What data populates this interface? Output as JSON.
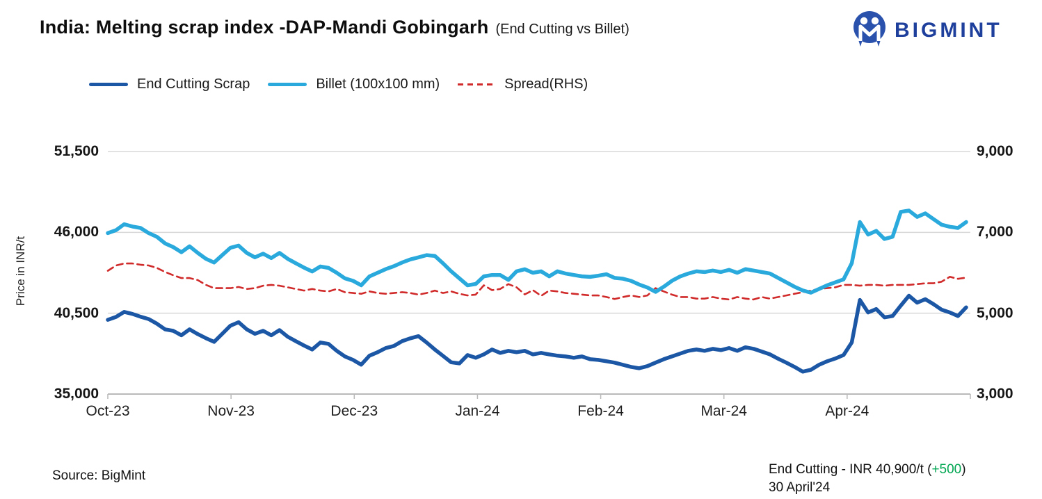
{
  "header": {
    "title": "India: Melting scrap index -DAP-Mandi Gobingarh",
    "subtitle": "(End Cutting vs Billet)",
    "brand": "BIGMINT"
  },
  "legend": [
    {
      "label": "End Cutting Scrap",
      "color": "#1b57a5",
      "dash": false
    },
    {
      "label": "Billet (100x100 mm)",
      "color": "#29a9dc",
      "dash": false
    },
    {
      "label": "Spread(RHS)",
      "color": "#d02a2a",
      "dash": true
    }
  ],
  "chart_data": {
    "type": "line",
    "title": "India: Melting scrap index -DAP-Mandi Gobingarh (End Cutting vs Billet)",
    "legend_position": "top",
    "grid": "horizontal",
    "x_categories": [
      "Oct-23",
      "Nov-23",
      "Dec-23",
      "Jan-24",
      "Feb-24",
      "Mar-24",
      "Apr-24"
    ],
    "points_per_month": 15,
    "y_left": {
      "title": "Price in INR/t",
      "min": 35000,
      "max": 51500,
      "ticks": [
        {
          "value": 51500,
          "label": "51,500"
        },
        {
          "value": 46000,
          "label": "46,000"
        },
        {
          "value": 40500,
          "label": "40,500"
        },
        {
          "value": 35000,
          "label": "35,000"
        }
      ]
    },
    "y_right": {
      "min": 3000,
      "max": 9000,
      "ticks": [
        {
          "value": 9000,
          "label": "9,000"
        },
        {
          "value": 7000,
          "label": "7,000"
        },
        {
          "value": 5000,
          "label": "5,000"
        },
        {
          "value": 3000,
          "label": "3,000"
        }
      ]
    },
    "series": [
      {
        "name": "Spread(RHS)",
        "axis": "right",
        "color": "#d02a2a",
        "dash": true,
        "values": [
          6050,
          6180,
          6230,
          6230,
          6200,
          6180,
          6120,
          6020,
          5940,
          5870,
          5870,
          5820,
          5700,
          5620,
          5620,
          5620,
          5650,
          5600,
          5620,
          5680,
          5700,
          5680,
          5640,
          5600,
          5560,
          5600,
          5560,
          5540,
          5600,
          5520,
          5500,
          5480,
          5540,
          5500,
          5480,
          5500,
          5520,
          5500,
          5460,
          5500,
          5560,
          5500,
          5540,
          5480,
          5440,
          5460,
          5690,
          5570,
          5600,
          5720,
          5640,
          5465,
          5570,
          5430,
          5560,
          5540,
          5500,
          5480,
          5460,
          5440,
          5440,
          5400,
          5350,
          5400,
          5440,
          5400,
          5440,
          5620,
          5540,
          5460,
          5400,
          5400,
          5360,
          5360,
          5400,
          5360,
          5340,
          5400,
          5360,
          5340,
          5400,
          5360,
          5400,
          5440,
          5480,
          5520,
          5560,
          5600,
          5620,
          5640,
          5700,
          5700,
          5680,
          5700,
          5700,
          5680,
          5700,
          5700,
          5700,
          5720,
          5740,
          5740,
          5780,
          5900,
          5850,
          5880
        ]
      },
      {
        "name": "Billet (100x100 mm)",
        "axis": "left",
        "color": "#29a9dc",
        "dash": false,
        "values": [
          45950,
          46150,
          46550,
          46400,
          46300,
          45950,
          45700,
          45250,
          45000,
          44650,
          45050,
          44600,
          44200,
          43950,
          44450,
          44950,
          45100,
          44600,
          44300,
          44550,
          44250,
          44600,
          44200,
          43900,
          43600,
          43340,
          43680,
          43580,
          43250,
          42870,
          42700,
          42400,
          43000,
          43250,
          43500,
          43700,
          43950,
          44160,
          44300,
          44450,
          44400,
          43900,
          43350,
          42870,
          42400,
          42490,
          43010,
          43100,
          43100,
          42770,
          43350,
          43490,
          43250,
          43350,
          43010,
          43350,
          43200,
          43100,
          43010,
          42970,
          43050,
          43150,
          42900,
          42850,
          42700,
          42450,
          42250,
          41950,
          42300,
          42700,
          43000,
          43200,
          43350,
          43300,
          43400,
          43300,
          43450,
          43250,
          43500,
          43400,
          43300,
          43200,
          42900,
          42600,
          42300,
          42050,
          41900,
          42150,
          42400,
          42600,
          42800,
          43900,
          46700,
          45850,
          46100,
          45550,
          45700,
          47390,
          47480,
          47050,
          47290,
          46900,
          46520,
          46380,
          46300,
          46700
        ]
      },
      {
        "name": "End Cutting Scrap",
        "axis": "left",
        "color": "#1b57a5",
        "dash": false,
        "values": [
          40050,
          40250,
          40590,
          40450,
          40260,
          40100,
          39790,
          39400,
          39300,
          39000,
          39400,
          39080,
          38800,
          38550,
          39100,
          39650,
          39890,
          39400,
          39100,
          39300,
          39000,
          39350,
          38900,
          38600,
          38300,
          38030,
          38510,
          38415,
          37940,
          37560,
          37320,
          37000,
          37610,
          37845,
          38130,
          38270,
          38600,
          38790,
          38940,
          38510,
          38030,
          37600,
          37160,
          37085,
          37650,
          37470,
          37700,
          38030,
          37800,
          37940,
          37845,
          37940,
          37700,
          37800,
          37700,
          37610,
          37560,
          37470,
          37560,
          37370,
          37320,
          37230,
          37135,
          36990,
          36850,
          36755,
          36900,
          37135,
          37370,
          37560,
          37750,
          37940,
          38030,
          37940,
          38080,
          37990,
          38130,
          37940,
          38180,
          38080,
          37890,
          37700,
          37400,
          37135,
          36850,
          36520,
          36650,
          36990,
          37230,
          37420,
          37650,
          38510,
          41400,
          40550,
          40780,
          40220,
          40310,
          41020,
          41690,
          41215,
          41455,
          41120,
          40740,
          40550,
          40310,
          40900
        ]
      }
    ]
  },
  "footer": {
    "source": "Source: BigMint",
    "note_prefix": "End Cutting - INR 40,900/t (",
    "note_change": "+500",
    "note_suffix": ")",
    "note_date": "30 April'24",
    "change_color": "#00a651"
  }
}
